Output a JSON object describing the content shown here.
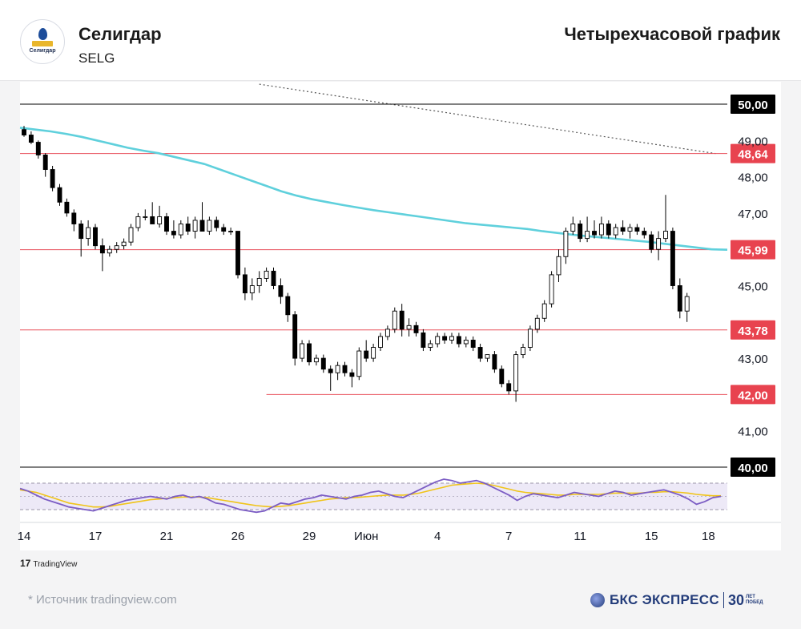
{
  "header": {
    "company": "Селигдар",
    "ticker": "SELG",
    "chart_title": "Четырехчасовой график",
    "logo_text": "Селигдар"
  },
  "footer": {
    "tradingview": "TradingView",
    "source": "*  Источник tradingview.com",
    "brand": "БКС ЭКСПРЕСС",
    "years": "30",
    "years_caption_1": "ЛЕТ",
    "years_caption_2": "ПОБЕД"
  },
  "colors": {
    "up_candle": "#ffffff",
    "down_candle": "#000000",
    "ma_line": "#5fd0dc",
    "level_line": "#e8505b",
    "rsi_line": "#7b5cc4",
    "rsi_signal": "#f0c419",
    "trendline": "#555555"
  },
  "chart_data": {
    "type": "candlestick",
    "timeframe": "4H",
    "y_ticks": [
      "49,00",
      "48,00",
      "47,00",
      "45,00",
      "43,00",
      "41,00"
    ],
    "ylim": [
      40.0,
      50.0
    ],
    "x_ticks": [
      {
        "label": "14",
        "index": 0
      },
      {
        "label": "17",
        "index": 10
      },
      {
        "label": "21",
        "index": 20
      },
      {
        "label": "26",
        "index": 30
      },
      {
        "label": "29",
        "index": 40
      },
      {
        "label": "Июн",
        "index": 48
      },
      {
        "label": "4",
        "index": 58
      },
      {
        "label": "7",
        "index": 68
      },
      {
        "label": "11",
        "index": 78
      },
      {
        "label": "15",
        "index": 88
      },
      {
        "label": "18",
        "index": 96
      }
    ],
    "levels": [
      {
        "value": 50.0,
        "label": "50,00",
        "style": "black",
        "start_index": 0
      },
      {
        "value": 48.64,
        "label": "48,64",
        "style": "red",
        "start_index": 0
      },
      {
        "value": 45.99,
        "label": "45,99",
        "style": "red",
        "start_index": 0
      },
      {
        "value": 43.78,
        "label": "43,78",
        "style": "red",
        "start_index": 0
      },
      {
        "value": 42.0,
        "label": "42,00",
        "style": "red",
        "start_index": 34
      },
      {
        "value": 40.0,
        "label": "40,00",
        "style": "black",
        "start_index": 0
      }
    ],
    "trendline": {
      "x0": 33,
      "y0": 50.55,
      "x1": 97,
      "y1": 48.64
    },
    "candles": [
      [
        49.3,
        49.4,
        49.1,
        49.15
      ],
      [
        49.15,
        49.25,
        48.9,
        48.95
      ],
      [
        48.95,
        49.0,
        48.5,
        48.6
      ],
      [
        48.6,
        48.65,
        48.0,
        48.2
      ],
      [
        48.2,
        48.3,
        47.6,
        47.7
      ],
      [
        47.7,
        47.8,
        47.2,
        47.3
      ],
      [
        47.3,
        47.4,
        46.9,
        47.0
      ],
      [
        47.0,
        47.1,
        46.5,
        46.7
      ],
      [
        46.7,
        46.8,
        45.8,
        46.3
      ],
      [
        46.3,
        46.8,
        46.1,
        46.6
      ],
      [
        46.6,
        46.7,
        46.0,
        46.1
      ],
      [
        46.1,
        46.3,
        45.4,
        45.9
      ],
      [
        45.9,
        46.1,
        45.8,
        46.0
      ],
      [
        46.0,
        46.2,
        45.9,
        46.1
      ],
      [
        46.1,
        46.3,
        46.0,
        46.2
      ],
      [
        46.2,
        46.7,
        46.1,
        46.6
      ],
      [
        46.6,
        47.0,
        46.5,
        46.9
      ],
      [
        46.9,
        47.1,
        46.8,
        46.9
      ],
      [
        46.9,
        47.3,
        46.7,
        46.7
      ],
      [
        46.7,
        47.2,
        46.6,
        46.9
      ],
      [
        46.9,
        47.0,
        46.4,
        46.5
      ],
      [
        46.5,
        46.8,
        46.3,
        46.4
      ],
      [
        46.4,
        46.8,
        46.3,
        46.7
      ],
      [
        46.7,
        46.9,
        46.4,
        46.5
      ],
      [
        46.5,
        46.9,
        46.3,
        46.8
      ],
      [
        46.8,
        47.3,
        46.5,
        46.5
      ],
      [
        46.5,
        46.9,
        46.4,
        46.8
      ],
      [
        46.8,
        46.9,
        46.5,
        46.6
      ],
      [
        46.6,
        46.7,
        46.4,
        46.5
      ],
      [
        46.5,
        46.6,
        46.4,
        46.5
      ],
      [
        46.5,
        46.5,
        45.2,
        45.3
      ],
      [
        45.3,
        45.5,
        44.6,
        44.8
      ],
      [
        44.8,
        45.2,
        44.6,
        45.0
      ],
      [
        45.0,
        45.4,
        44.8,
        45.2
      ],
      [
        45.2,
        45.5,
        45.1,
        45.4
      ],
      [
        45.4,
        45.5,
        44.9,
        45.0
      ],
      [
        45.0,
        45.2,
        44.5,
        44.7
      ],
      [
        44.7,
        44.8,
        44.0,
        44.2
      ],
      [
        44.2,
        44.3,
        42.8,
        43.0
      ],
      [
        43.0,
        43.5,
        42.9,
        43.4
      ],
      [
        43.4,
        43.5,
        42.8,
        42.9
      ],
      [
        42.9,
        43.1,
        42.8,
        43.0
      ],
      [
        43.0,
        43.1,
        42.6,
        42.7
      ],
      [
        42.7,
        42.8,
        42.1,
        42.6
      ],
      [
        42.6,
        42.9,
        42.4,
        42.8
      ],
      [
        42.8,
        42.9,
        42.5,
        42.6
      ],
      [
        42.6,
        42.7,
        42.2,
        42.5
      ],
      [
        42.5,
        43.3,
        42.4,
        43.2
      ],
      [
        43.2,
        43.5,
        42.9,
        43.0
      ],
      [
        43.0,
        43.4,
        42.9,
        43.3
      ],
      [
        43.3,
        43.7,
        43.2,
        43.6
      ],
      [
        43.6,
        43.9,
        43.5,
        43.8
      ],
      [
        43.8,
        44.4,
        43.7,
        44.3
      ],
      [
        44.3,
        44.5,
        43.6,
        43.8
      ],
      [
        43.8,
        44.1,
        43.6,
        43.9
      ],
      [
        43.9,
        44.0,
        43.6,
        43.7
      ],
      [
        43.7,
        43.8,
        43.2,
        43.3
      ],
      [
        43.3,
        43.5,
        43.2,
        43.4
      ],
      [
        43.4,
        43.7,
        43.3,
        43.6
      ],
      [
        43.6,
        43.7,
        43.4,
        43.5
      ],
      [
        43.5,
        43.7,
        43.4,
        43.6
      ],
      [
        43.6,
        43.7,
        43.3,
        43.4
      ],
      [
        43.4,
        43.6,
        43.3,
        43.5
      ],
      [
        43.5,
        43.6,
        43.2,
        43.3
      ],
      [
        43.3,
        43.4,
        42.9,
        43.0
      ],
      [
        43.0,
        43.1,
        42.9,
        43.1
      ],
      [
        43.1,
        43.2,
        42.6,
        42.7
      ],
      [
        42.7,
        42.8,
        42.2,
        42.3
      ],
      [
        42.3,
        42.4,
        42.0,
        42.1
      ],
      [
        42.1,
        43.2,
        41.8,
        43.1
      ],
      [
        43.1,
        43.4,
        43.0,
        43.3
      ],
      [
        43.3,
        43.9,
        43.2,
        43.8
      ],
      [
        43.8,
        44.2,
        43.7,
        44.1
      ],
      [
        44.1,
        44.6,
        44.0,
        44.5
      ],
      [
        44.5,
        45.4,
        44.4,
        45.3
      ],
      [
        45.3,
        46.0,
        45.1,
        45.8
      ],
      [
        45.8,
        46.6,
        45.6,
        46.5
      ],
      [
        46.5,
        46.9,
        46.4,
        46.7
      ],
      [
        46.7,
        46.8,
        46.2,
        46.3
      ],
      [
        46.3,
        46.9,
        46.2,
        46.5
      ],
      [
        46.5,
        46.8,
        46.3,
        46.4
      ],
      [
        46.4,
        46.9,
        46.3,
        46.7
      ],
      [
        46.7,
        46.8,
        46.3,
        46.4
      ],
      [
        46.4,
        46.7,
        46.3,
        46.6
      ],
      [
        46.6,
        46.8,
        46.4,
        46.5
      ],
      [
        46.5,
        46.7,
        46.3,
        46.6
      ],
      [
        46.6,
        46.7,
        46.4,
        46.5
      ],
      [
        46.5,
        46.6,
        46.3,
        46.4
      ],
      [
        46.4,
        46.5,
        45.9,
        46.0
      ],
      [
        46.0,
        46.5,
        45.7,
        46.3
      ],
      [
        46.3,
        47.5,
        46.2,
        46.5
      ],
      [
        46.5,
        46.6,
        44.9,
        45.0
      ],
      [
        45.0,
        45.2,
        44.1,
        44.3
      ],
      [
        44.3,
        44.8,
        44.0,
        44.7
      ]
    ],
    "ma_series": [
      49.35,
      49.3,
      49.25,
      49.18,
      49.1,
      49.0,
      48.9,
      48.8,
      48.72,
      48.65,
      48.55,
      48.45,
      48.35,
      48.2,
      48.05,
      47.9,
      47.75,
      47.6,
      47.48,
      47.38,
      47.3,
      47.22,
      47.15,
      47.08,
      47.02,
      46.96,
      46.9,
      46.84,
      46.78,
      46.72,
      46.68,
      46.64,
      46.6,
      46.56,
      46.5,
      46.45,
      46.4,
      46.36,
      46.32,
      46.28,
      46.24,
      46.2,
      46.15,
      46.1,
      46.05,
      46.0,
      45.99
    ],
    "rsi": {
      "upper": 70,
      "lower": 30,
      "values": [
        62,
        58,
        52,
        46,
        42,
        38,
        34,
        32,
        30,
        28,
        32,
        36,
        40,
        44,
        46,
        48,
        50,
        48,
        46,
        50,
        52,
        48,
        50,
        46,
        40,
        38,
        34,
        30,
        28,
        26,
        28,
        34,
        40,
        38,
        42,
        46,
        48,
        52,
        50,
        48,
        46,
        50,
        52,
        56,
        58,
        54,
        50,
        48,
        54,
        60,
        66,
        72,
        76,
        74,
        70,
        72,
        74,
        70,
        64,
        58,
        52,
        44,
        50,
        54,
        52,
        50,
        48,
        52,
        56,
        54,
        52,
        50,
        54,
        58,
        56,
        52,
        54,
        56,
        58,
        60,
        56,
        52,
        46,
        38,
        42,
        48,
        50
      ],
      "signal": [
        60,
        58,
        56,
        52,
        48,
        44,
        40,
        38,
        36,
        34,
        34,
        35,
        37,
        39,
        41,
        43,
        45,
        46,
        47,
        48,
        49,
        49,
        49,
        48,
        46,
        44,
        42,
        40,
        38,
        36,
        35,
        34,
        35,
        36,
        38,
        40,
        42,
        44,
        46,
        47,
        48,
        48,
        49,
        50,
        51,
        52,
        52,
        52,
        53,
        55,
        58,
        61,
        64,
        67,
        68,
        69,
        70,
        69,
        67,
        64,
        61,
        58,
        56,
        55,
        54,
        53,
        52,
        52,
        53,
        53,
        53,
        53,
        54,
        55,
        55,
        55,
        55,
        56,
        56,
        57,
        57,
        56,
        55,
        53,
        52,
        51,
        51
      ]
    }
  }
}
